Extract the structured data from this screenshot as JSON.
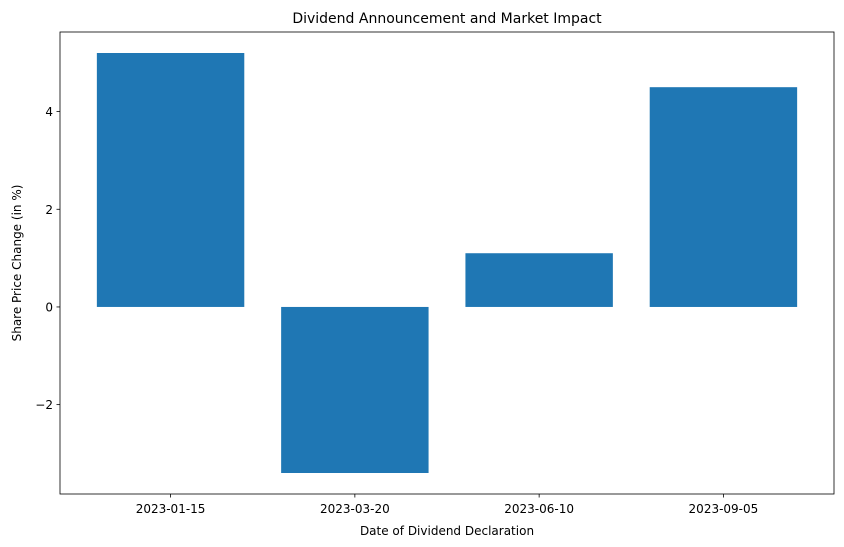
{
  "chart_data": {
    "type": "bar",
    "title": "Dividend Announcement and Market Impact",
    "xlabel": "Date of Dividend Declaration",
    "ylabel": "Share Price Change (in %)",
    "categories": [
      "2023-01-15",
      "2023-03-20",
      "2023-06-10",
      "2023-09-05"
    ],
    "values": [
      5.2,
      -3.4,
      1.1,
      4.5
    ],
    "ylim": [
      -3.83,
      5.63
    ],
    "yticks": [
      -2,
      0,
      2,
      4
    ],
    "ytick_labels": [
      "−2",
      "0",
      "2",
      "4"
    ],
    "bar_color": "#1f77b4",
    "grid": false,
    "legend": "none"
  }
}
